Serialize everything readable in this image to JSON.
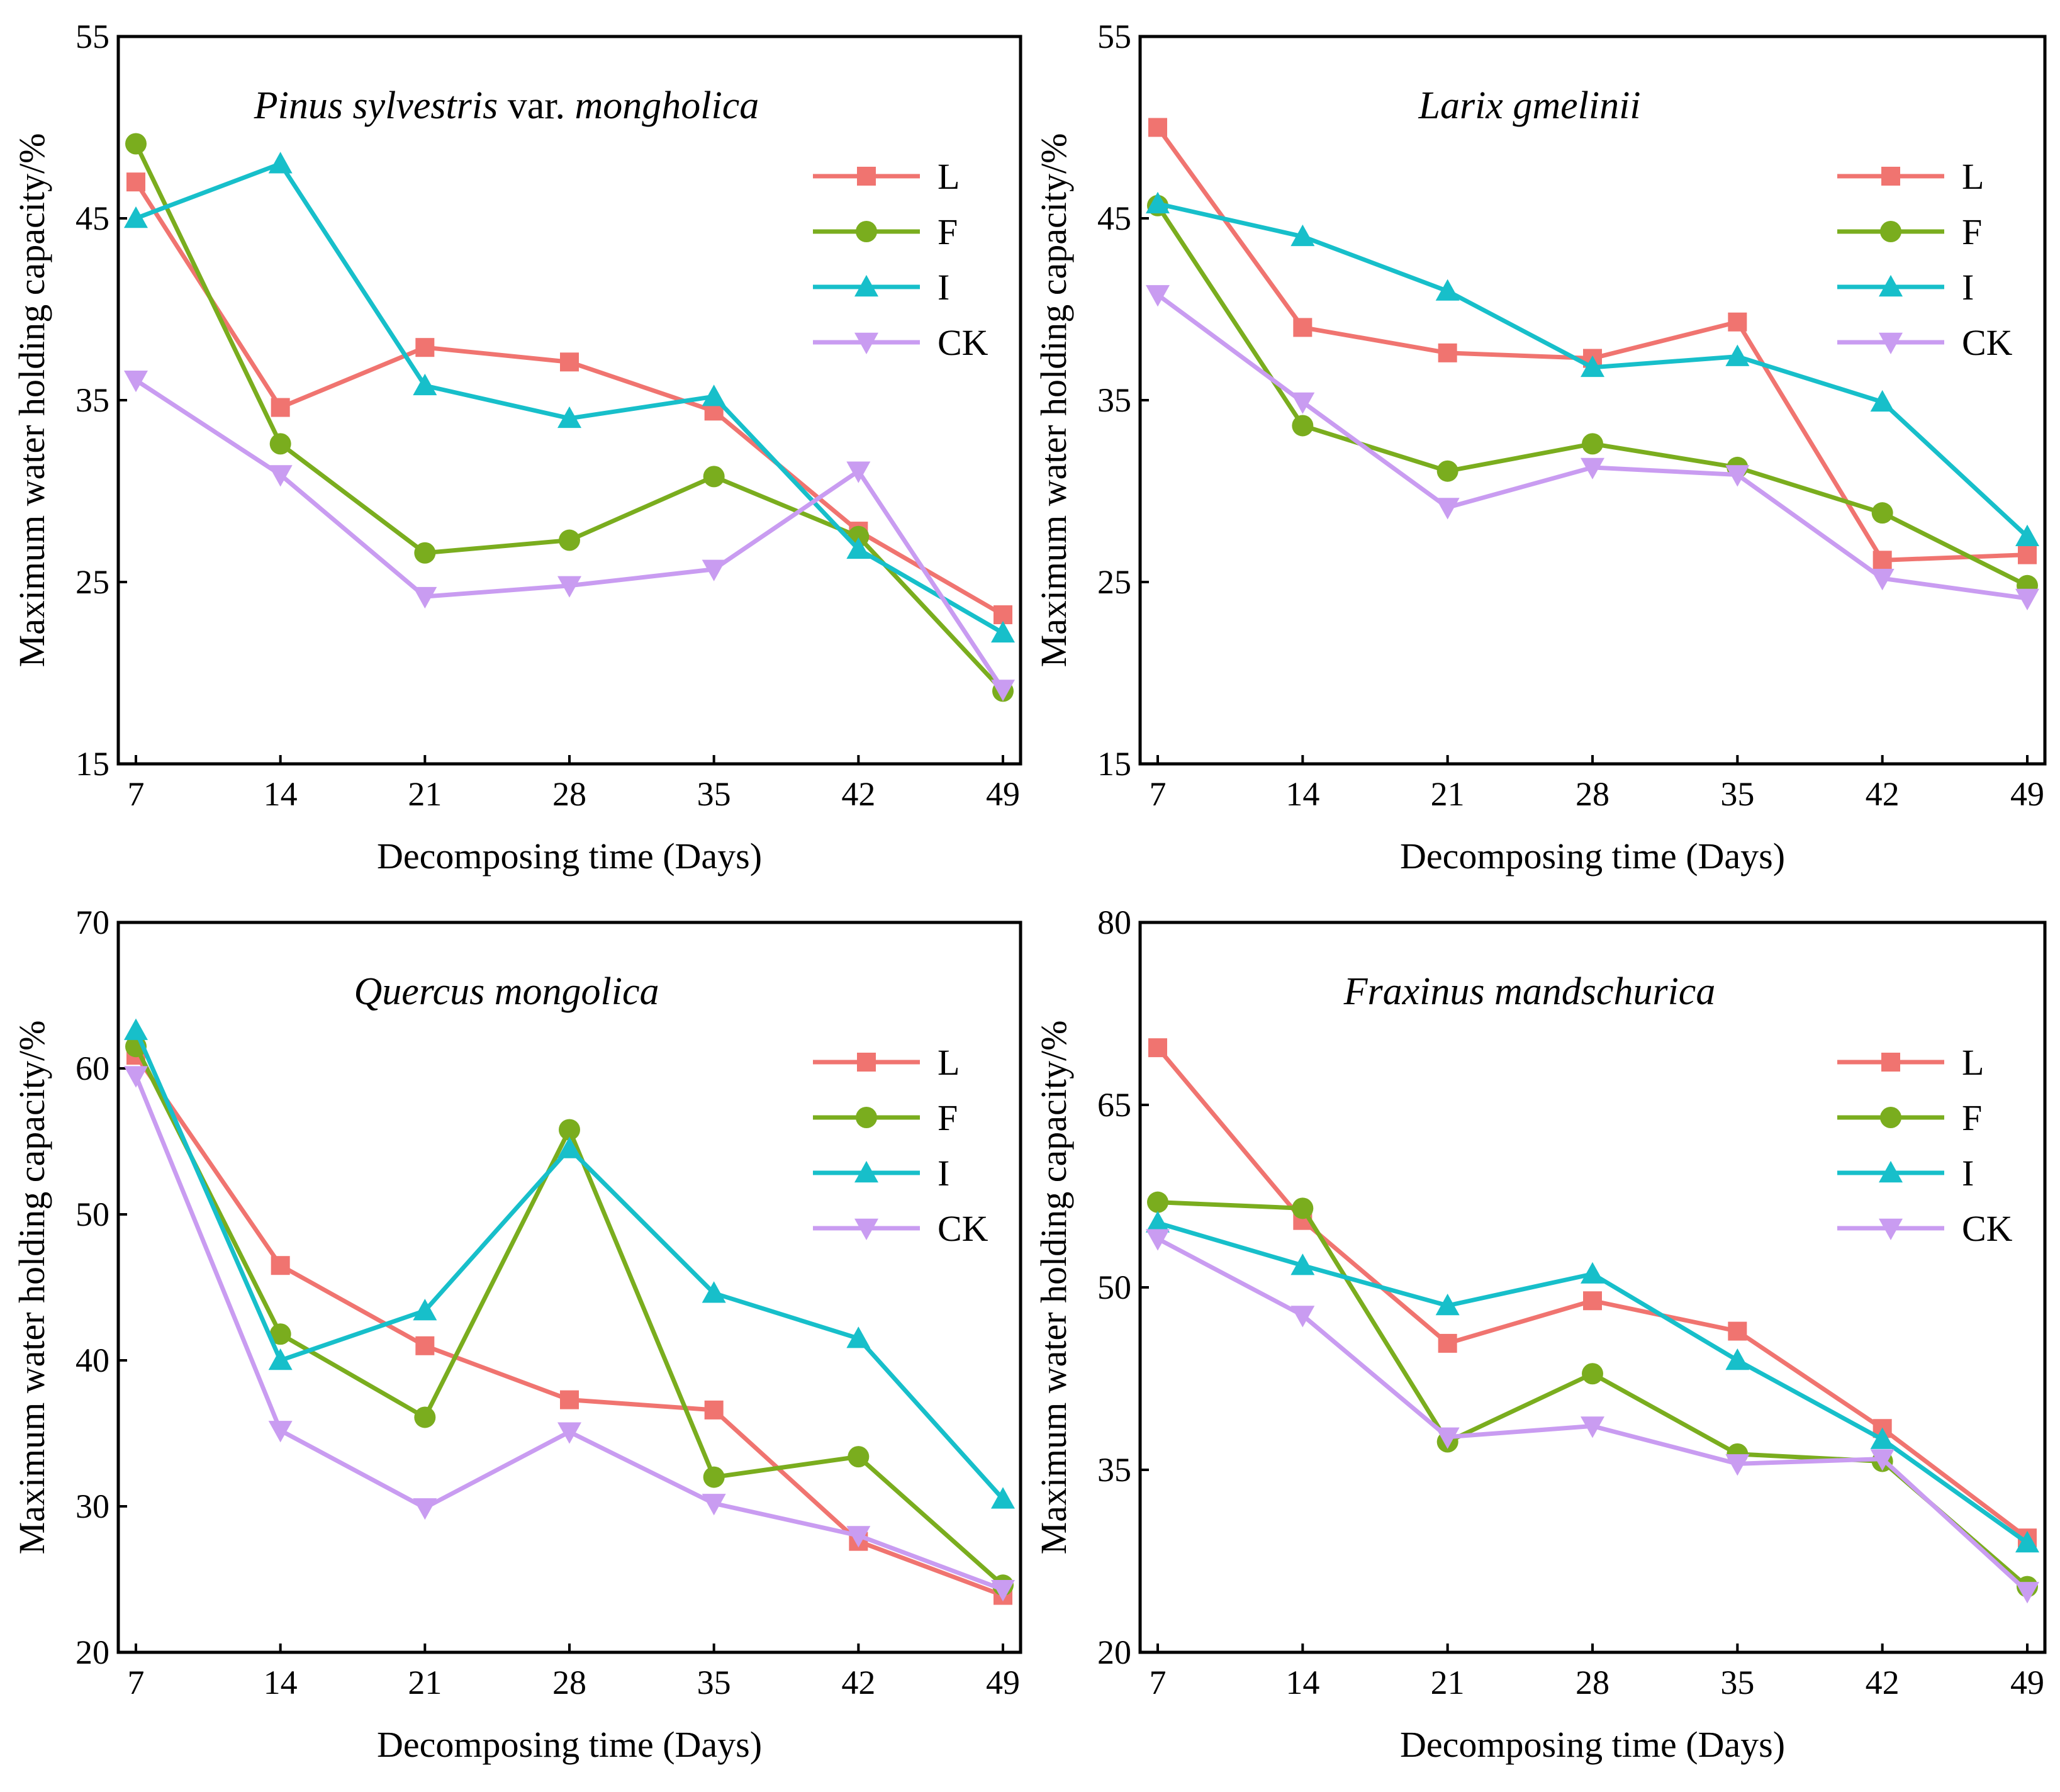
{
  "chart_data": [
    {
      "type": "line",
      "title_parts": [
        {
          "text": "Pinus sylvestris",
          "italic": true
        },
        {
          "text": " var. ",
          "italic": false
        },
        {
          "text": "mongholica",
          "italic": true
        }
      ],
      "title": "Pinus sylvestris var. mongholica",
      "xlabel": "Decomposing time (Days)",
      "ylabel": "Maximum water holding capacity/%",
      "x": [
        7,
        14,
        21,
        28,
        35,
        42,
        49
      ],
      "x_ticks": [
        "7",
        "14",
        "21",
        "28",
        "35",
        "42",
        "49"
      ],
      "ylim": [
        15,
        55
      ],
      "y_ticks": [
        "15",
        "25",
        "35",
        "45",
        "55"
      ],
      "legend_position": "top-right",
      "series": [
        {
          "name": "L",
          "color": "#F07470",
          "marker": "square",
          "values": [
            47.0,
            34.6,
            37.9,
            37.1,
            34.4,
            27.8,
            23.2
          ]
        },
        {
          "name": "F",
          "color": "#7AAD1E",
          "marker": "circle",
          "values": [
            49.1,
            32.6,
            26.6,
            27.3,
            30.8,
            27.5,
            19.0
          ]
        },
        {
          "name": "I",
          "color": "#17BFCA",
          "marker": "triangle-up",
          "values": [
            45.0,
            48.0,
            35.8,
            34.0,
            35.2,
            26.8,
            22.2
          ]
        },
        {
          "name": "CK",
          "color": "#C99CF1",
          "marker": "triangle-down",
          "values": [
            36.1,
            30.9,
            24.2,
            24.8,
            25.7,
            31.1,
            19.1
          ]
        }
      ]
    },
    {
      "type": "line",
      "title_parts": [
        {
          "text": "Larix gmelinii",
          "italic": true
        }
      ],
      "title": "Larix gmelinii",
      "xlabel": "Decomposing time (Days)",
      "ylabel": "Maximum water holding capacity/%",
      "x": [
        7,
        14,
        21,
        28,
        35,
        42,
        49
      ],
      "x_ticks": [
        "7",
        "14",
        "21",
        "28",
        "35",
        "42",
        "49"
      ],
      "ylim": [
        15,
        55
      ],
      "y_ticks": [
        "15",
        "25",
        "35",
        "45",
        "55"
      ],
      "legend_position": "top-right",
      "series": [
        {
          "name": "L",
          "color": "#F07470",
          "marker": "square",
          "values": [
            50.0,
            39.0,
            37.6,
            37.3,
            39.3,
            26.2,
            26.5
          ]
        },
        {
          "name": "F",
          "color": "#7AAD1E",
          "marker": "circle",
          "values": [
            45.7,
            33.6,
            31.1,
            32.6,
            31.3,
            28.8,
            24.8
          ]
        },
        {
          "name": "I",
          "color": "#17BFCA",
          "marker": "triangle-up",
          "values": [
            45.8,
            44.0,
            41.0,
            36.8,
            37.4,
            34.9,
            27.5
          ]
        },
        {
          "name": "CK",
          "color": "#C99CF1",
          "marker": "triangle-down",
          "values": [
            40.8,
            34.9,
            29.1,
            31.3,
            30.9,
            25.2,
            24.1
          ]
        }
      ]
    },
    {
      "type": "line",
      "title_parts": [
        {
          "text": "Quercus mongolica",
          "italic": true
        }
      ],
      "title": "Quercus mongolica",
      "xlabel": "Decomposing time (Days)",
      "ylabel": "Maximum water holding capacity/%",
      "x": [
        7,
        14,
        21,
        28,
        35,
        42,
        49
      ],
      "x_ticks": [
        "7",
        "14",
        "21",
        "28",
        "35",
        "42",
        "49"
      ],
      "ylim": [
        20,
        70
      ],
      "y_ticks": [
        "20",
        "30",
        "40",
        "50",
        "60",
        "70"
      ],
      "legend_position": "top-right",
      "series": [
        {
          "name": "L",
          "color": "#F07470",
          "marker": "square",
          "values": [
            60.9,
            46.5,
            41.0,
            37.3,
            36.6,
            27.6,
            23.9
          ]
        },
        {
          "name": "F",
          "color": "#7AAD1E",
          "marker": "circle",
          "values": [
            61.5,
            41.8,
            36.1,
            55.8,
            32.0,
            33.4,
            24.6
          ]
        },
        {
          "name": "I",
          "color": "#17BFCA",
          "marker": "triangle-up",
          "values": [
            62.6,
            40.0,
            43.4,
            54.5,
            44.6,
            41.5,
            30.5
          ]
        },
        {
          "name": "CK",
          "color": "#C99CF1",
          "marker": "triangle-down",
          "values": [
            59.5,
            35.2,
            29.9,
            35.1,
            30.2,
            28.0,
            24.3
          ]
        }
      ]
    },
    {
      "type": "line",
      "title_parts": [
        {
          "text": "Fraxinus mandschurica",
          "italic": true
        }
      ],
      "title": "Fraxinus mandschurica",
      "xlabel": "Decomposing time (Days)",
      "ylabel": "Maximum water holding capacity/%",
      "x": [
        7,
        14,
        21,
        28,
        35,
        42,
        49
      ],
      "x_ticks": [
        "7",
        "14",
        "21",
        "28",
        "35",
        "42",
        "49"
      ],
      "ylim": [
        20,
        80
      ],
      "y_ticks": [
        "20",
        "35",
        "50",
        "65",
        "80"
      ],
      "legend_position": "top-right",
      "series": [
        {
          "name": "L",
          "color": "#F07470",
          "marker": "square",
          "values": [
            69.7,
            55.5,
            45.4,
            48.9,
            46.4,
            38.4,
            29.4
          ]
        },
        {
          "name": "F",
          "color": "#7AAD1E",
          "marker": "circle",
          "values": [
            57.0,
            56.5,
            37.3,
            42.9,
            36.3,
            35.7,
            25.4
          ]
        },
        {
          "name": "I",
          "color": "#17BFCA",
          "marker": "triangle-up",
          "values": [
            55.3,
            51.8,
            48.5,
            51.1,
            44.0,
            37.5,
            29.0
          ]
        },
        {
          "name": "CK",
          "color": "#C99CF1",
          "marker": "triangle-down",
          "values": [
            54.0,
            47.7,
            37.7,
            38.6,
            35.5,
            35.9,
            25.0
          ]
        }
      ]
    }
  ]
}
